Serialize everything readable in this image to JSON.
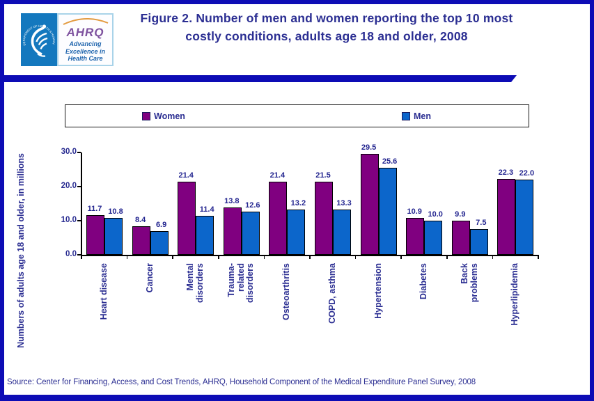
{
  "header": {
    "logo": {
      "seal_text": "DEPARTMENT OF HEALTH & HUMAN SERVICES · USA",
      "brand": "AHRQ",
      "tagline_lines": [
        "Advancing",
        "Excellence in",
        "Health Care"
      ]
    },
    "title_line1": "Figure 2. Number of men and women reporting the top 10 most",
    "title_line2": "costly conditions, adults age 18 and older, 2008"
  },
  "chart_data": {
    "type": "bar",
    "title": "Figure 2. Number of men and women reporting the top 10 most costly conditions, adults age 18 and older, 2008",
    "categories": [
      "Heart disease",
      "Cancer",
      "Mental disorders",
      "Trauma-related disorders",
      "Osteoarthritis",
      "COPD, asthma",
      "Hypertension",
      "Diabetes",
      "Back problems",
      "Hyperlipidemia"
    ],
    "category_label_lines": [
      [
        "Heart disease"
      ],
      [
        "Cancer"
      ],
      [
        "Mental",
        "disorders"
      ],
      [
        "Trauma-",
        "related",
        "disorders"
      ],
      [
        "Osteoarthritis"
      ],
      [
        "COPD, asthma"
      ],
      [
        "Hypertension"
      ],
      [
        "Diabetes"
      ],
      [
        "Back",
        "problems"
      ],
      [
        "Hyperlipidemia"
      ]
    ],
    "series": [
      {
        "name": "Women",
        "color": "#800080",
        "values": [
          11.7,
          8.4,
          21.4,
          13.8,
          21.4,
          21.5,
          29.5,
          10.9,
          9.9,
          22.3
        ]
      },
      {
        "name": "Men",
        "color": "#0c66cb",
        "values": [
          10.8,
          6.9,
          11.4,
          12.6,
          13.2,
          13.3,
          25.6,
          10.0,
          7.5,
          22.0
        ]
      }
    ],
    "ylabel": "Numbers of adults age 18 and older, in millions",
    "xlabel": "",
    "ylim": [
      0,
      30
    ],
    "yticks": [
      0,
      10,
      20,
      30
    ],
    "ytick_labels": [
      "0.0",
      "10.0",
      "20.0",
      "30.0"
    ],
    "grid": false,
    "legend_position": "top",
    "value_labels": true
  },
  "footer": {
    "source": "Source: Center for Financing, Access, and Cost Trends, AHRQ, Household Component of the Medical Expenditure Panel Survey, 2008"
  }
}
